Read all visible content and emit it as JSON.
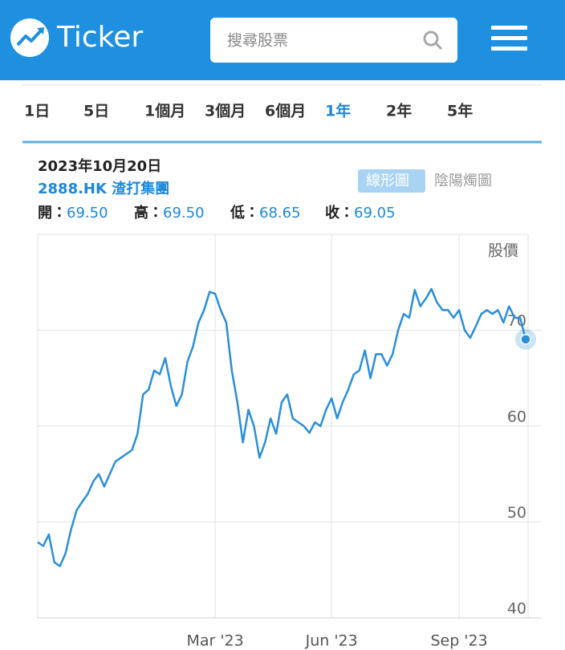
{
  "header": {
    "logo": "Ticker",
    "search_placeholder": "搜尋股票"
  },
  "tabs": [
    {
      "label": "1日"
    },
    {
      "label": "5日"
    },
    {
      "label": "1個月"
    },
    {
      "label": "3個月"
    },
    {
      "label": "6個月"
    },
    {
      "label": "1年",
      "active": true
    },
    {
      "label": "2年"
    },
    {
      "label": "5年"
    }
  ],
  "quote": {
    "date": "2023年10月20日",
    "symbol": "2888.HK 渣打集團",
    "ohlc": [
      {
        "label": "開：",
        "value": "69.50"
      },
      {
        "label": "高：",
        "value": "69.50"
      },
      {
        "label": "低：",
        "value": "68.65"
      },
      {
        "label": "收：",
        "value": "69.05"
      }
    ]
  },
  "view_toggle": [
    {
      "label": "線形圖",
      "active": true
    },
    {
      "label": "陰陽燭圖"
    }
  ],
  "chart_data": {
    "type": "line",
    "y_label": "股價",
    "color": "#2a8fd8",
    "grid": true,
    "ylim": [
      40,
      80
    ],
    "yticks": [
      40,
      50,
      60,
      70
    ],
    "categories": [
      null,
      null,
      null,
      null,
      null,
      null,
      null,
      null,
      null,
      null,
      null,
      null,
      null,
      null,
      null,
      null,
      null,
      null,
      null,
      null,
      null,
      null,
      null,
      null,
      null,
      null,
      null,
      null,
      null,
      null,
      null,
      null,
      "Mar '23",
      null,
      null,
      null,
      null,
      null,
      null,
      null,
      null,
      null,
      null,
      null,
      null,
      null,
      null,
      null,
      null,
      null,
      null,
      null,
      null,
      "Jun '23",
      null,
      null,
      null,
      null,
      null,
      null,
      null,
      null,
      null,
      null,
      null,
      null,
      null,
      null,
      null,
      null,
      null,
      null,
      null,
      null,
      null,
      null,
      "Sep '23",
      null,
      null,
      null,
      null,
      null,
      null,
      null,
      null,
      null,
      null,
      null,
      null
    ],
    "values": [
      47.9,
      47.5,
      48.7,
      45.8,
      45.4,
      46.7,
      49.2,
      51.2,
      52.1,
      52.9,
      54.2,
      55,
      53.7,
      55,
      56.3,
      56.7,
      57.1,
      57.5,
      59.2,
      63.3,
      63.8,
      65.8,
      65.4,
      67.1,
      64.2,
      62.1,
      63.3,
      66.7,
      68.3,
      70.8,
      72.1,
      74,
      73.8,
      72.1,
      70.8,
      65.8,
      62.5,
      58.3,
      61.7,
      60,
      56.7,
      58.3,
      60.8,
      59.2,
      62.5,
      63.3,
      60.8,
      60.4,
      60,
      59.3,
      60.4,
      60,
      61.7,
      62.9,
      60.8,
      62.5,
      63.8,
      65.4,
      65.8,
      67.9,
      65,
      67.5,
      67.5,
      66.3,
      67.5,
      70,
      71.7,
      71.3,
      74.2,
      72.5,
      73.3,
      74.3,
      72.9,
      72.1,
      72.1,
      71.3,
      72.1,
      70,
      69.2,
      70.4,
      71.7,
      72.1,
      71.7,
      72.1,
      70.8,
      72.5,
      71.3,
      71.3,
      69.05
    ]
  }
}
